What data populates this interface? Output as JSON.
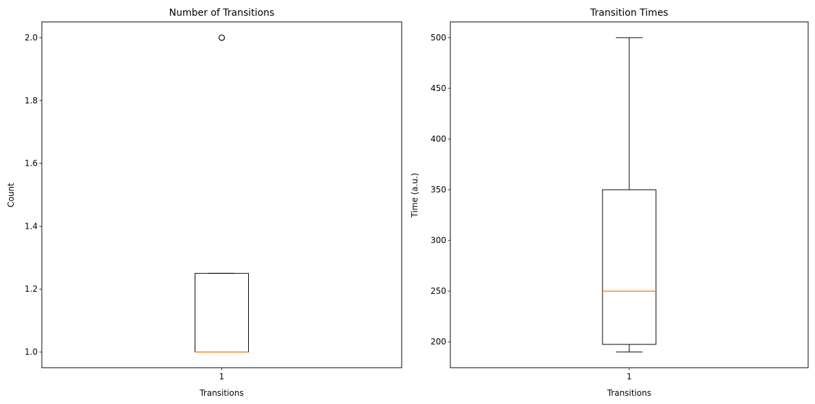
{
  "figure": {
    "background": "#ffffff",
    "median_color": "#ff7f0e",
    "line_color": "#000000"
  },
  "chart_data": [
    {
      "type": "box",
      "title": "Number of Transitions",
      "xlabel": "Transitions",
      "ylabel": "Count",
      "categories": [
        "1"
      ],
      "ylim": [
        0.95,
        2.05
      ],
      "yticks": [
        1.0,
        1.2,
        1.4,
        1.6,
        1.8,
        2.0
      ],
      "ytick_labels": [
        "1.0",
        "1.2",
        "1.4",
        "1.6",
        "1.8",
        "2.0"
      ],
      "grid": false,
      "boxes": [
        {
          "category": "1",
          "whisker_low": 1.0,
          "q1": 1.0,
          "median": 1.0,
          "q3": 1.25,
          "whisker_high": 1.25,
          "outliers": [
            2.0
          ]
        }
      ]
    },
    {
      "type": "box",
      "title": "Transition Times",
      "xlabel": "Transitions",
      "ylabel": "Time (a.u.)",
      "categories": [
        "1"
      ],
      "ylim": [
        174.5,
        515.5
      ],
      "yticks": [
        200,
        250,
        300,
        350,
        400,
        450,
        500
      ],
      "ytick_labels": [
        "200",
        "250",
        "300",
        "350",
        "400",
        "450",
        "500"
      ],
      "grid": false,
      "boxes": [
        {
          "category": "1",
          "whisker_low": 190,
          "q1": 197.5,
          "median": 250,
          "q3": 350,
          "whisker_high": 500,
          "outliers": []
        }
      ]
    }
  ]
}
